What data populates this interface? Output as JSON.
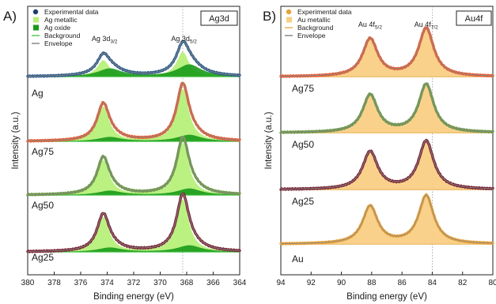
{
  "chart_data": [
    {
      "type": "line",
      "panel_letter": "A)",
      "badge": "Ag3d",
      "xlabel": "Binding energy (eV)",
      "ylabel": "Intensity (a.u.)",
      "xlim": [
        380,
        364
      ],
      "x_reversed": true,
      "xticks": [
        "380",
        "378",
        "376",
        "374",
        "372",
        "370",
        "368",
        "366",
        "364"
      ],
      "reference_line_x": 368.3,
      "legend": {
        "placement": "top-left",
        "entries": [
          {
            "label": "Experimental data",
            "kind": "marker",
            "color": "#1f3f6e"
          },
          {
            "label": "Ag metallic",
            "kind": "patch",
            "color": "#b6f07a"
          },
          {
            "label": "Ag oxide",
            "kind": "patch",
            "color": "#1a9a1a"
          },
          {
            "label": "Background",
            "kind": "line",
            "color": "#55cc55"
          },
          {
            "label": "Envelope",
            "kind": "line",
            "color": "#888888"
          }
        ]
      },
      "peak_labels": [
        {
          "main": "Ag 3d",
          "sub": "3/2",
          "x": 374.2
        },
        {
          "main": "Ag 3d",
          "sub": "5/2",
          "x": 368.2
        }
      ],
      "metal_component": {
        "d32_center": 374.3,
        "d52_center": 368.3,
        "width_ev": 0.55,
        "ratio_d32_to_d52": 0.66
      },
      "oxide_component": {
        "d32_center": 373.8,
        "d52_center": 367.8,
        "width_ev": 1.1
      },
      "spectra": [
        {
          "label": "Ag",
          "data_color": "#2e5c8a",
          "metal_height": 0.45,
          "oxide_height": 0.22,
          "background": 0.04
        },
        {
          "label": "Ag75",
          "data_color": "#e2603a",
          "metal_height": 0.95,
          "oxide_height": 0.12,
          "background": 0.04
        },
        {
          "label": "Ag50",
          "data_color": "#6e9a48",
          "metal_height": 0.95,
          "oxide_height": 0.12,
          "background": 0.04
        },
        {
          "label": "Ag25",
          "data_color": "#7a2636",
          "metal_height": 0.95,
          "oxide_height": 0.12,
          "background": 0.04
        }
      ]
    },
    {
      "type": "line",
      "panel_letter": "B)",
      "badge": "Au4f",
      "xlabel": "Binding energy (eV)",
      "ylabel": "Intensity (a.u.)",
      "xlim": [
        94,
        80
      ],
      "x_reversed": true,
      "xticks": [
        "94",
        "92",
        "90",
        "88",
        "86",
        "84",
        "82",
        "80"
      ],
      "reference_line_x": 84.0,
      "legend": {
        "placement": "top-left",
        "entries": [
          {
            "label": "Experimental data",
            "kind": "marker",
            "color": "#e8a23a"
          },
          {
            "label": "Au metallic",
            "kind": "patch",
            "color": "#f9cf85"
          },
          {
            "label": "Background",
            "kind": "line",
            "color": "#e8b14f"
          },
          {
            "label": "Envelope",
            "kind": "line",
            "color": "#888888"
          }
        ]
      },
      "peak_labels": [
        {
          "main": "Au 4f",
          "sub": "5/2",
          "x": 88.1
        },
        {
          "main": "Au 4f",
          "sub": "7/2",
          "x": 84.4
        }
      ],
      "metal_component": {
        "f52_center": 88.1,
        "f72_center": 84.4,
        "width_ev": 0.6,
        "ratio_f52_to_f72": 0.78
      },
      "spectra": [
        {
          "label": "Ag75",
          "data_color": "#e2603a",
          "metal_height": 0.9,
          "background": 0.04
        },
        {
          "label": "Ag50",
          "data_color": "#6e9a48",
          "metal_height": 0.9,
          "background": 0.04
        },
        {
          "label": "Ag25",
          "data_color": "#7a2636",
          "metal_height": 0.9,
          "background": 0.04
        },
        {
          "label": "Au",
          "data_color": "#e8a23a",
          "metal_height": 0.9,
          "background": 0.04
        }
      ]
    }
  ]
}
